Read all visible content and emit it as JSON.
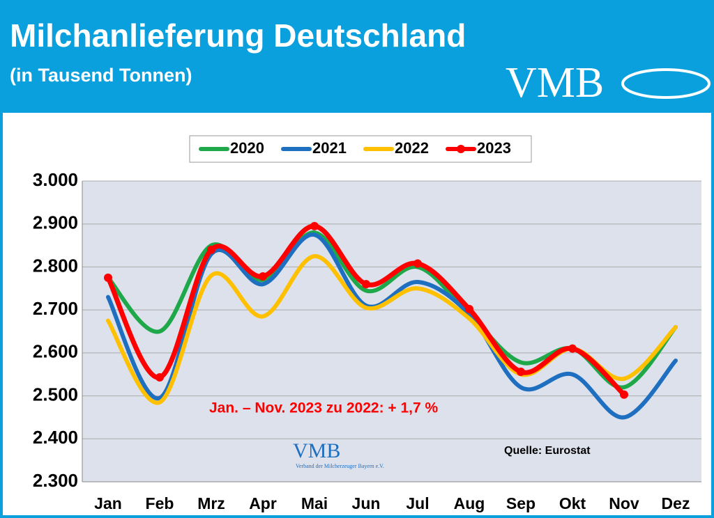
{
  "header": {
    "title": "Milchanlieferung Deutschland",
    "subtitle": "(in Tausend Tonnen)",
    "logo": "VMB"
  },
  "chart_data": {
    "type": "line",
    "categories": [
      "Jan",
      "Feb",
      "Mrz",
      "Apr",
      "Mai",
      "Jun",
      "Jul",
      "Aug",
      "Sep",
      "Okt",
      "Nov",
      "Dez"
    ],
    "series": [
      {
        "name": "2020",
        "color": "#1fa84a",
        "values": [
          2775,
          2650,
          2850,
          2770,
          2880,
          2745,
          2800,
          2690,
          2578,
          2610,
          2520,
          2660
        ]
      },
      {
        "name": "2021",
        "color": "#1f6fc0",
        "values": [
          2730,
          2495,
          2830,
          2760,
          2875,
          2710,
          2765,
          2690,
          2520,
          2550,
          2450,
          2582
        ]
      },
      {
        "name": "2022",
        "color": "#ffc000",
        "values": [
          2675,
          2485,
          2780,
          2685,
          2825,
          2705,
          2750,
          2680,
          2550,
          2610,
          2540,
          2660
        ]
      },
      {
        "name": "2023",
        "color": "#ff0000",
        "markers": true,
        "values": [
          2775,
          2543,
          2840,
          2778,
          2895,
          2760,
          2808,
          2702,
          2556,
          2610,
          2503,
          null
        ]
      }
    ],
    "ylim": [
      2300,
      3000
    ],
    "yticks": [
      {
        "value": 2300,
        "label": "2.300"
      },
      {
        "value": 2400,
        "label": "2.400"
      },
      {
        "value": 2500,
        "label": "2.500"
      },
      {
        "value": 2600,
        "label": "2.600"
      },
      {
        "value": 2700,
        "label": "2.700"
      },
      {
        "value": 2800,
        "label": "2.800"
      },
      {
        "value": 2900,
        "label": "2.900"
      },
      {
        "value": 3000,
        "label": "3.000"
      }
    ],
    "grid": true,
    "legend": "top",
    "annotation": "Jan. – Nov. 2023 zu 2022: + 1,7 %",
    "source": "Quelle: Eurostat",
    "logo": {
      "text": "VMB",
      "caption": "Verband der Milcherzeuger Bayern e.V."
    }
  }
}
